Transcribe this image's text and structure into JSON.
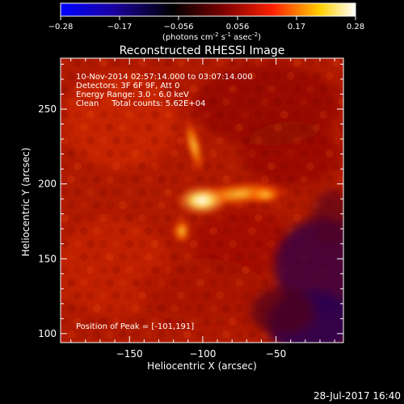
{
  "chart_data": {
    "type": "heatmap",
    "title": "Reconstructed RHESSI Image",
    "xlabel": "Heliocentric X (arcsec)",
    "ylabel": "Heliocentric Y (arcsec)",
    "xlim": [
      -197,
      -4
    ],
    "ylim": [
      94,
      284
    ],
    "xticks": [
      -150,
      -100,
      -50
    ],
    "yticks": [
      100,
      150,
      200,
      250
    ],
    "colorbar": {
      "min": -0.28,
      "max": 0.28,
      "ticks": [
        "-0.28",
        "-0.17",
        "-0.056",
        "0.056",
        "0.17",
        "0.28"
      ],
      "colors": [
        "#0000ff",
        "#1a00a0",
        "#000000",
        "#7a0000",
        "#ff2000",
        "#ffd000",
        "#ffffff"
      ],
      "unit_main": "(photons cm",
      "unit_sup1": "-2",
      "unit_mid1": " s",
      "unit_sup2": "-1",
      "unit_mid2": " asec",
      "unit_sup3": "-2",
      "unit_end": ")"
    },
    "annotations": {
      "time": "10-Nov-2014 02:57:14.000 to 03:07:14.000",
      "detectors": "Detectors: 3F 6F 9F, Att 0",
      "energy": "Energy Range: 3.0 - 6.0 keV",
      "clean": "Clean     Total counts: 5.62E+04",
      "peak": "Position of Peak = [-101,191]"
    },
    "sources": [
      {
        "x": -101,
        "y": 191,
        "peak": 0.28
      },
      {
        "x": -60,
        "y": 195,
        "peak": 0.19
      },
      {
        "x": -115,
        "y": 222,
        "peak": 0.15
      },
      {
        "x": -118,
        "y": 170,
        "peak": 0.17
      }
    ]
  },
  "footer": {
    "date": "28-Jul-2017 16:40"
  }
}
